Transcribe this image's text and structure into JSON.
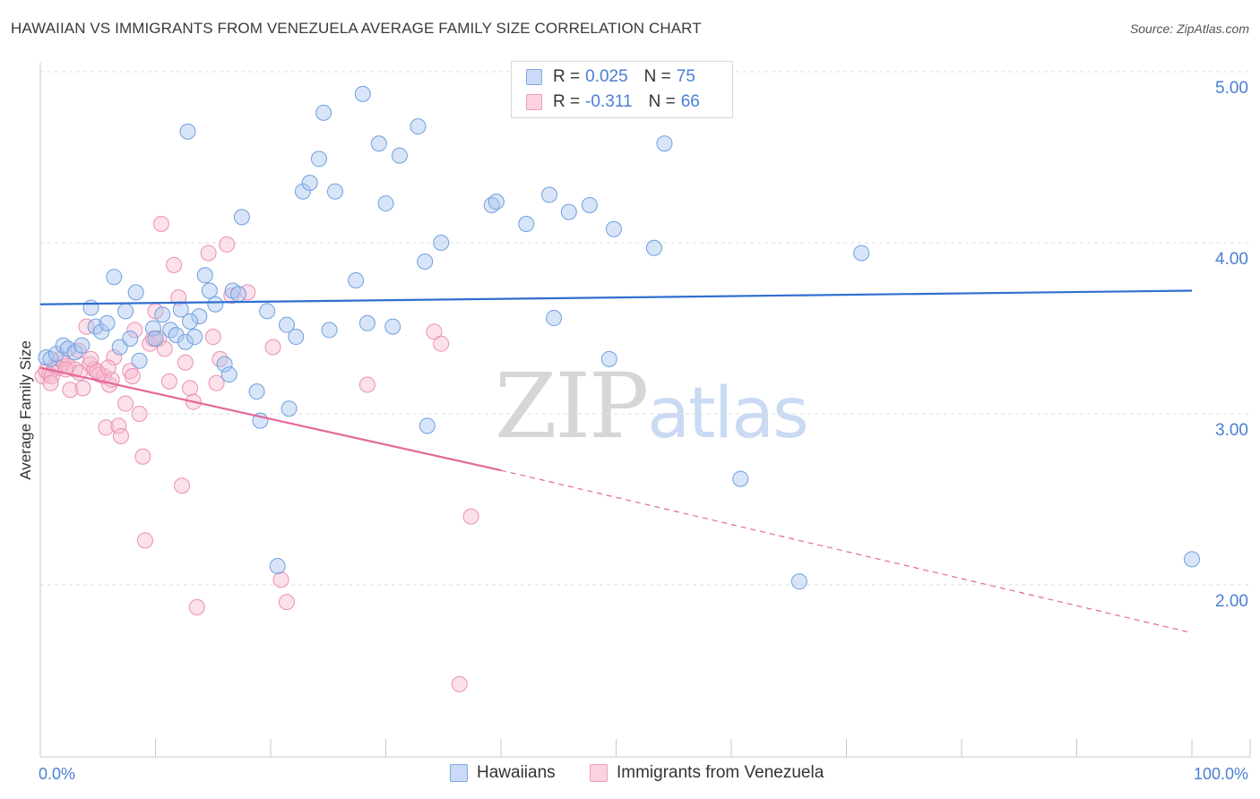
{
  "title": "HAWAIIAN VS IMMIGRANTS FROM VENEZUELA AVERAGE FAMILY SIZE CORRELATION CHART",
  "source": "Source: ZipAtlas.com",
  "watermark": {
    "part1": "ZIP",
    "part2": "atlas"
  },
  "legend": {
    "r_label": "R =",
    "n_label": "N =",
    "rows": [
      {
        "series": "Hawaiians",
        "r": "0.025",
        "n": "75",
        "color": "#a9c6f0",
        "stroke": "#6f9fe0"
      },
      {
        "series": "Immigrants from Venezuela",
        "r": "-0.311",
        "n": "66",
        "color": "#f7bcd0",
        "stroke": "#ec8fb0"
      }
    ]
  },
  "bottom_legend": [
    "Hawaiians",
    "Immigrants from Venezuela"
  ],
  "chart_data": {
    "type": "scatter",
    "title": "HAWAIIAN VS IMMIGRANTS FROM VENEZUELA AVERAGE FAMILY SIZE CORRELATION CHART",
    "xlabel": "",
    "ylabel": "Average Family Size",
    "xlim": [
      0,
      100
    ],
    "ylim": [
      1.0,
      5.1
    ],
    "x_tick_labels": [
      "0.0%",
      "100.0%"
    ],
    "y_ticks": [
      2.0,
      3.0,
      4.0,
      5.0
    ],
    "y_tick_labels": [
      "2.00",
      "3.00",
      "4.00",
      "5.00"
    ],
    "grid": "horizontal dashed",
    "legend_placement": "top-center",
    "series": [
      {
        "name": "Hawaiians",
        "color": "#6f9fe0",
        "trend": {
          "x": [
            0,
            100
          ],
          "y": [
            3.64,
            3.72
          ]
        },
        "points": [
          [
            0.5,
            3.33
          ],
          [
            0.9,
            3.32
          ],
          [
            1.4,
            3.35
          ],
          [
            2.0,
            3.4
          ],
          [
            2.4,
            3.38
          ],
          [
            3.0,
            3.36
          ],
          [
            3.6,
            3.4
          ],
          [
            4.4,
            3.62
          ],
          [
            4.8,
            3.51
          ],
          [
            5.3,
            3.48
          ],
          [
            5.8,
            3.53
          ],
          [
            6.4,
            3.8
          ],
          [
            6.9,
            3.39
          ],
          [
            7.4,
            3.6
          ],
          [
            7.8,
            3.44
          ],
          [
            8.6,
            3.31
          ],
          [
            8.3,
            3.71
          ],
          [
            9.8,
            3.5
          ],
          [
            10.0,
            3.44
          ],
          [
            10.6,
            3.58
          ],
          [
            11.3,
            3.49
          ],
          [
            11.8,
            3.46
          ],
          [
            12.2,
            3.61
          ],
          [
            12.6,
            3.42
          ],
          [
            12.8,
            4.65
          ],
          [
            13.4,
            3.45
          ],
          [
            13.8,
            3.57
          ],
          [
            14.3,
            3.81
          ],
          [
            14.7,
            3.72
          ],
          [
            15.2,
            3.64
          ],
          [
            16.0,
            3.29
          ],
          [
            16.4,
            3.23
          ],
          [
            16.7,
            3.72
          ],
          [
            17.2,
            3.7
          ],
          [
            17.5,
            4.15
          ],
          [
            18.8,
            3.13
          ],
          [
            19.1,
            2.96
          ],
          [
            19.7,
            3.6
          ],
          [
            20.6,
            2.11
          ],
          [
            21.4,
            3.52
          ],
          [
            21.6,
            3.03
          ],
          [
            22.2,
            3.45
          ],
          [
            22.8,
            4.3
          ],
          [
            23.4,
            4.35
          ],
          [
            24.2,
            4.49
          ],
          [
            24.6,
            4.76
          ],
          [
            25.1,
            3.49
          ],
          [
            25.6,
            4.3
          ],
          [
            27.4,
            3.78
          ],
          [
            28.0,
            4.87
          ],
          [
            28.4,
            3.53
          ],
          [
            29.4,
            4.58
          ],
          [
            30.0,
            4.23
          ],
          [
            30.6,
            3.51
          ],
          [
            31.2,
            4.51
          ],
          [
            32.8,
            4.68
          ],
          [
            33.4,
            3.89
          ],
          [
            33.6,
            2.93
          ],
          [
            34.8,
            4.0
          ],
          [
            39.2,
            4.22
          ],
          [
            39.6,
            4.24
          ],
          [
            42.2,
            4.11
          ],
          [
            44.2,
            4.28
          ],
          [
            44.6,
            3.56
          ],
          [
            45.9,
            4.18
          ],
          [
            47.7,
            4.22
          ],
          [
            49.4,
            3.32
          ],
          [
            49.8,
            4.08
          ],
          [
            53.3,
            3.97
          ],
          [
            54.2,
            4.58
          ],
          [
            60.8,
            2.62
          ],
          [
            65.9,
            2.02
          ],
          [
            71.3,
            3.94
          ],
          [
            100.0,
            2.15
          ],
          [
            13.0,
            3.54
          ]
        ]
      },
      {
        "name": "Immigrants from Venezuela",
        "color": "#ec8fb0",
        "trend_solid": {
          "x": [
            0,
            40
          ],
          "y": [
            3.27,
            2.67
          ]
        },
        "trend_dashed": {
          "x": [
            40,
            100
          ],
          "y": [
            2.67,
            1.72
          ]
        },
        "points": [
          [
            0.2,
            3.22
          ],
          [
            0.5,
            3.25
          ],
          [
            0.8,
            3.23
          ],
          [
            1.0,
            3.22
          ],
          [
            1.3,
            3.28
          ],
          [
            1.6,
            3.27
          ],
          [
            2.0,
            3.3
          ],
          [
            2.4,
            3.28
          ],
          [
            2.6,
            3.14
          ],
          [
            3.0,
            3.26
          ],
          [
            3.3,
            3.37
          ],
          [
            3.7,
            3.15
          ],
          [
            4.0,
            3.51
          ],
          [
            4.3,
            3.29
          ],
          [
            4.7,
            3.26
          ],
          [
            5.1,
            3.23
          ],
          [
            5.5,
            3.22
          ],
          [
            5.7,
            2.92
          ],
          [
            6.0,
            3.17
          ],
          [
            6.4,
            3.33
          ],
          [
            6.8,
            2.93
          ],
          [
            7.0,
            2.87
          ],
          [
            7.4,
            3.06
          ],
          [
            7.8,
            3.25
          ],
          [
            8.0,
            3.22
          ],
          [
            8.2,
            3.49
          ],
          [
            8.6,
            3.0
          ],
          [
            8.9,
            2.75
          ],
          [
            9.1,
            2.26
          ],
          [
            9.5,
            3.41
          ],
          [
            10.0,
            3.6
          ],
          [
            10.3,
            3.44
          ],
          [
            10.5,
            4.11
          ],
          [
            10.8,
            3.38
          ],
          [
            11.2,
            3.19
          ],
          [
            11.6,
            3.87
          ],
          [
            12.0,
            3.68
          ],
          [
            12.3,
            2.58
          ],
          [
            12.6,
            3.3
          ],
          [
            13.0,
            3.15
          ],
          [
            13.3,
            3.07
          ],
          [
            13.6,
            1.87
          ],
          [
            14.6,
            3.94
          ],
          [
            15.0,
            3.45
          ],
          [
            15.3,
            3.18
          ],
          [
            15.6,
            3.32
          ],
          [
            16.2,
            3.99
          ],
          [
            16.6,
            3.69
          ],
          [
            18.0,
            3.71
          ],
          [
            20.2,
            3.39
          ],
          [
            20.9,
            2.03
          ],
          [
            21.4,
            1.9
          ],
          [
            28.4,
            3.17
          ],
          [
            34.2,
            3.48
          ],
          [
            34.8,
            3.41
          ],
          [
            36.4,
            1.42
          ],
          [
            37.4,
            2.4
          ],
          [
            4.9,
            3.25
          ],
          [
            6.2,
            3.2
          ],
          [
            9.8,
            3.44
          ],
          [
            3.4,
            3.24
          ],
          [
            1.8,
            3.32
          ],
          [
            2.2,
            3.26
          ],
          [
            4.4,
            3.32
          ],
          [
            0.9,
            3.18
          ],
          [
            5.9,
            3.27
          ]
        ]
      }
    ]
  }
}
